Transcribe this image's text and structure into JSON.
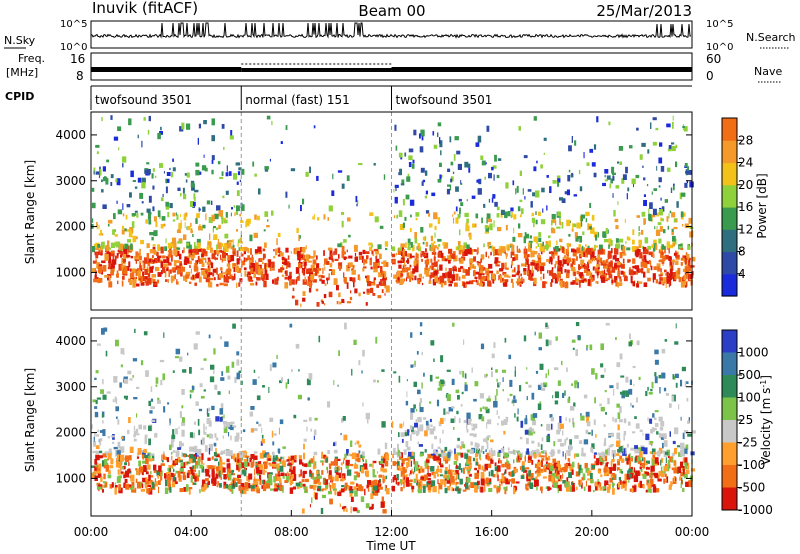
{
  "header": {
    "station": "Inuvik (fitACF)",
    "beam": "Beam 00",
    "date": "25/Mar/2013"
  },
  "chart_data": [
    {
      "type": "line",
      "panel": "noise",
      "left_label": "N.Sky",
      "right_label": "N.Search",
      "y_ticks_left": [
        "10^5",
        "10^0"
      ],
      "y_ticks_right": [
        "10^5",
        "10^0"
      ]
    },
    {
      "type": "line",
      "panel": "frequency",
      "left_label_1": "Freq.",
      "left_label_2": "[MHz]",
      "right_label": "Nave",
      "y_ticks_left": [
        "16",
        "8"
      ],
      "y_ticks_right": [
        "60",
        "0"
      ]
    },
    {
      "type": "bar",
      "panel": "cpid",
      "label": "CPID",
      "segments": [
        {
          "name": "twofsound 3501",
          "start_hour": 0,
          "end_hour": 6
        },
        {
          "name": "normal (fast) 151",
          "start_hour": 6,
          "end_hour": 12
        },
        {
          "name": "twofsound 3501",
          "start_hour": 12,
          "end_hour": 24
        }
      ]
    },
    {
      "type": "heatmap",
      "panel": "power",
      "ylabel": "Slant Range [km]",
      "y_ticks": [
        "1000",
        "2000",
        "3000",
        "4000"
      ],
      "ylim": [
        180,
        4500
      ],
      "colorbar_label": "Power [dB]",
      "colorbar_ticks": [
        "4",
        "8",
        "12",
        "16",
        "20",
        "24",
        "28"
      ],
      "colorbar_range": [
        0,
        32
      ],
      "colors": [
        "#1a2bdc",
        "#2e4aa6",
        "#2f6e7e",
        "#3a9a4e",
        "#8fd13a",
        "#f2c21b",
        "#f39a2a",
        "#f26e16",
        "#e53b12",
        "#d9140a"
      ]
    },
    {
      "type": "heatmap",
      "panel": "velocity",
      "ylabel": "Slant Range [km]",
      "y_ticks": [
        "1000",
        "2000",
        "3000",
        "4000"
      ],
      "ylim": [
        180,
        4500
      ],
      "xlabel": "Time UT",
      "x_ticks": [
        "00:00",
        "04:00",
        "08:00",
        "12:00",
        "16:00",
        "20:00",
        "00:00"
      ],
      "xlim": [
        0,
        24
      ],
      "colorbar_label": "Velocity [m s",
      "colorbar_unit_exp": "-1",
      "colorbar_unit_close": "]",
      "colorbar_ticks": [
        "1000",
        "500",
        "100",
        "25",
        "-25",
        "-100",
        "-500",
        "-1000"
      ],
      "colors": [
        "#2a3fc6",
        "#3a78a8",
        "#2e8b57",
        "#7cc34a",
        "#c8c8c8",
        "#ff9f2e",
        "#f26e16",
        "#d9140a"
      ]
    }
  ]
}
